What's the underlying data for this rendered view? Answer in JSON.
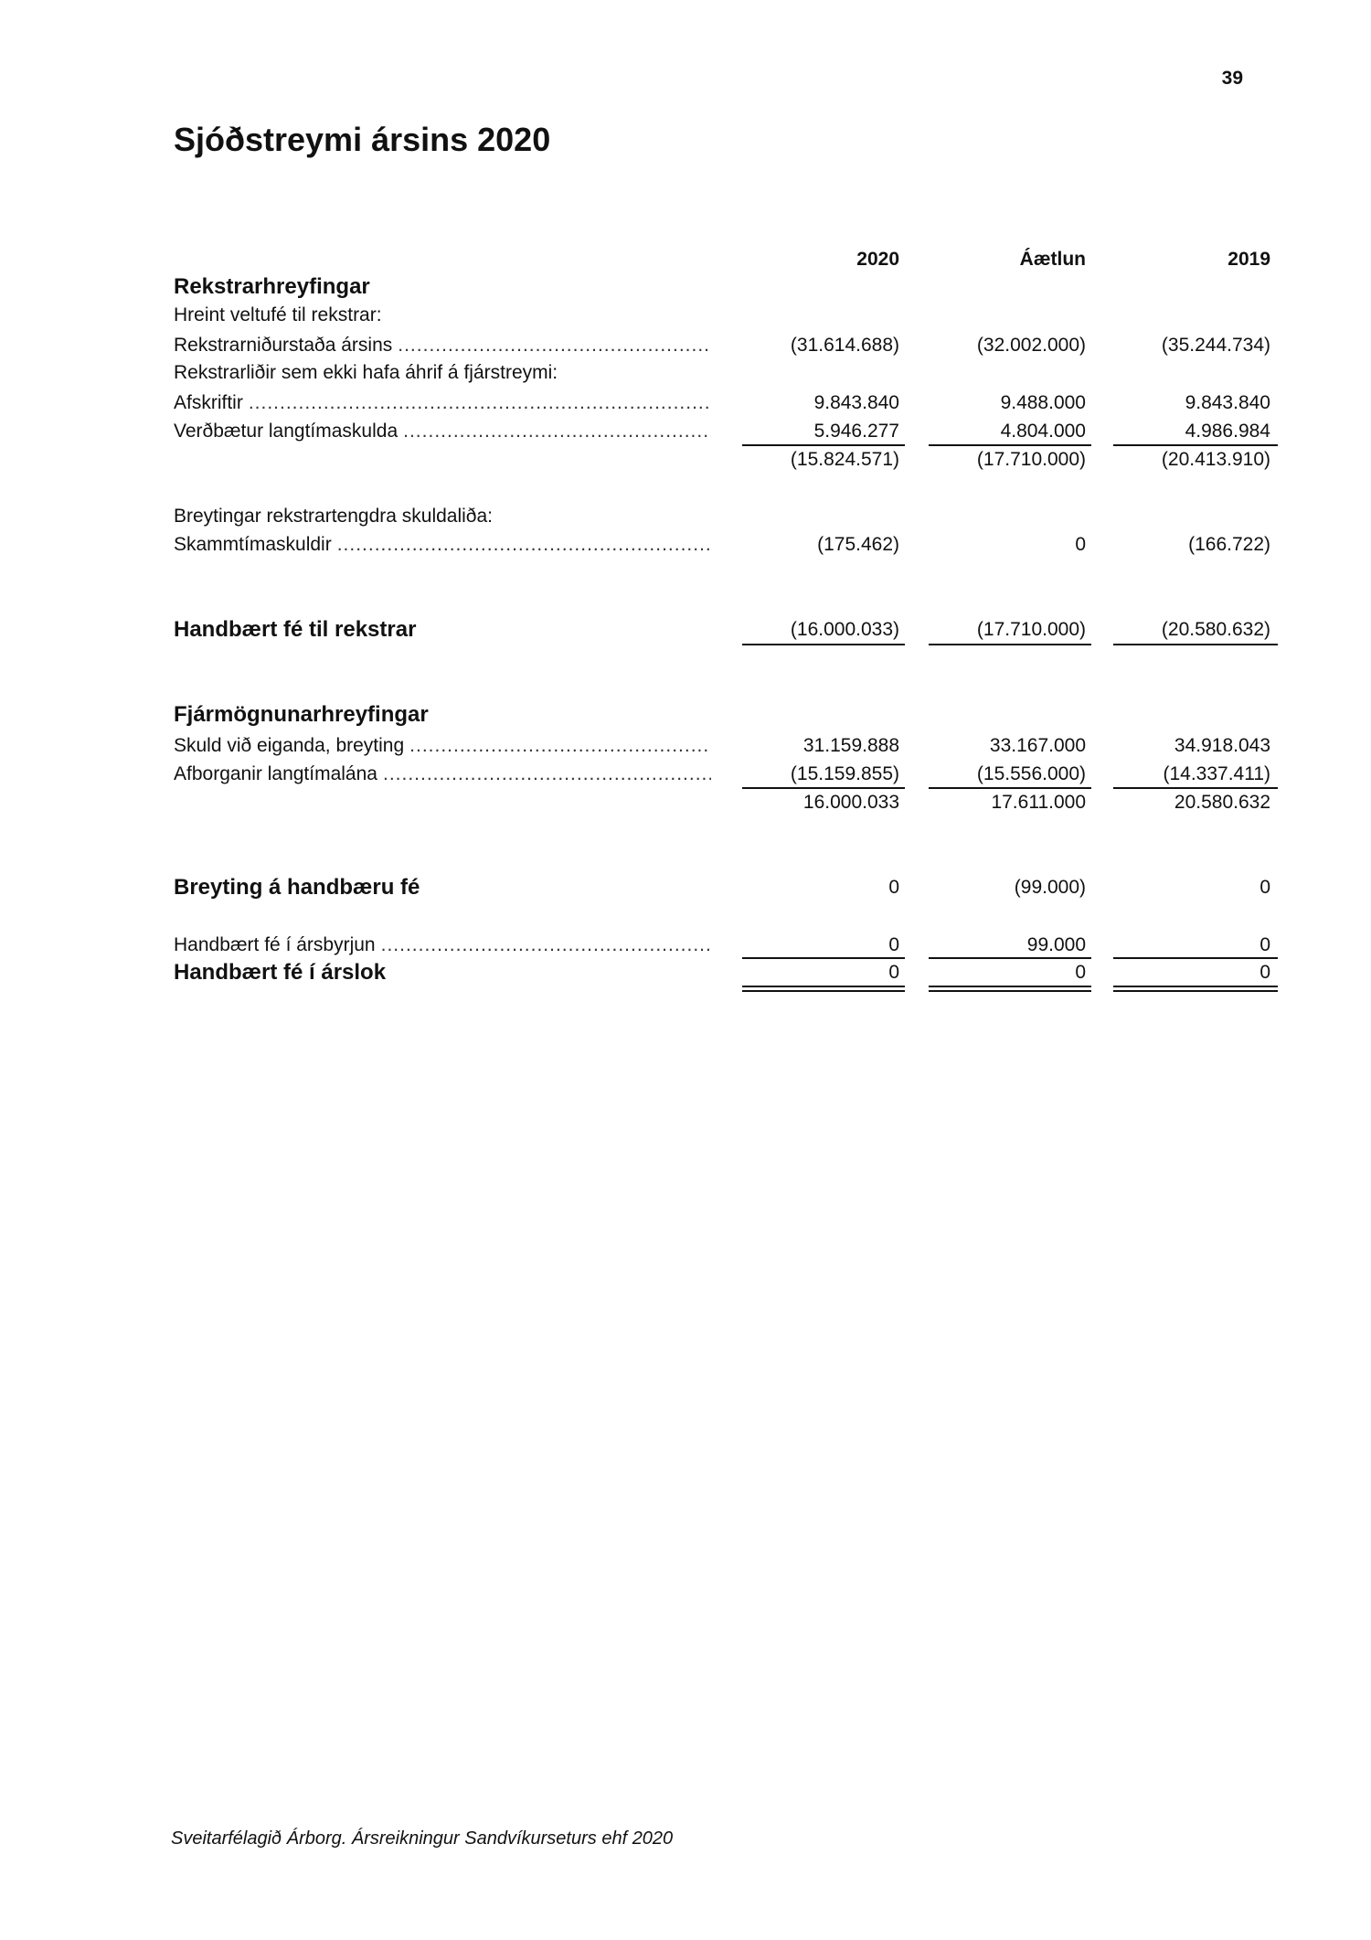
{
  "page_number": "39",
  "title": "Sjóðstreymi ársins 2020",
  "columns": [
    "2020",
    "Áætlun",
    "2019"
  ],
  "sections": {
    "rekstur": {
      "heading": "Rekstrarhreyfingar",
      "sub1": "Hreint veltufé til rekstrar:",
      "rows1": [
        {
          "label": "Rekstrarniðurstaða ársins",
          "values": [
            "(31.614.688)",
            "(32.002.000)",
            "(35.244.734)"
          ]
        }
      ],
      "sub2": "Rekstrarliðir sem ekki hafa áhrif á fjárstreymi:",
      "rows2": [
        {
          "label": "Afskriftir",
          "values": [
            "9.843.840",
            "9.488.000",
            "9.843.840"
          ]
        },
        {
          "label": "Verðbætur langtímaskulda",
          "values": [
            "5.946.277",
            "4.804.000",
            "4.986.984"
          ]
        }
      ],
      "subtotal": [
        "(15.824.571)",
        "(17.710.000)",
        "(20.413.910)"
      ],
      "sub3": "Breytingar rekstrartengdra skuldaliða:",
      "rows3": [
        {
          "label": "Skammtímaskuldir",
          "values": [
            "(175.462)",
            "0",
            "(166.722)"
          ]
        }
      ],
      "total": {
        "label": "Handbært fé til rekstrar",
        "values": [
          "(16.000.033)",
          "(17.710.000)",
          "(20.580.632)"
        ]
      }
    },
    "fjarmognun": {
      "heading": "Fjármögnunarhreyfingar",
      "rows": [
        {
          "label": "Skuld við eiganda, breyting",
          "values": [
            "31.159.888",
            "33.167.000",
            "34.918.043"
          ]
        },
        {
          "label": "Afborganir langtímalána",
          "values": [
            "(15.159.855)",
            "(15.556.000)",
            "(14.337.411)"
          ]
        }
      ],
      "subtotal": [
        "16.000.033",
        "17.611.000",
        "20.580.632"
      ]
    },
    "breyting": {
      "label": "Breyting á handbæru fé",
      "values": [
        "0",
        "(99.000)",
        "0"
      ]
    },
    "arsbyrjun": {
      "label": "Handbært fé í ársbyrjun",
      "values": [
        "0",
        "99.000",
        "0"
      ]
    },
    "arslok": {
      "label": "Handbært fé í árslok",
      "values": [
        "0",
        "0",
        "0"
      ]
    }
  },
  "footer": "Sveitarfélagið Árborg. Ársreikningur Sandvíkurseturs ehf 2020"
}
